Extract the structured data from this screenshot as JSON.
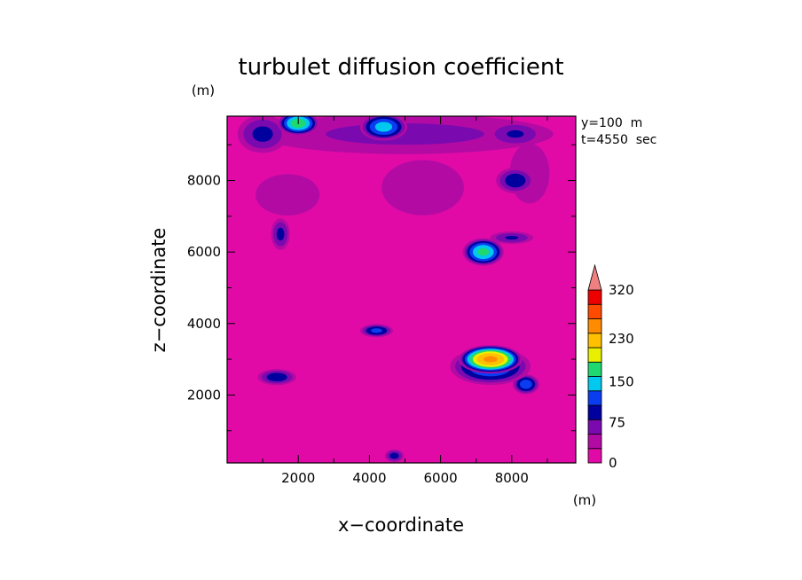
{
  "chart_data": {
    "type": "heatmap",
    "title": "turbulet diffusion coefficient",
    "xlabel": "x−coordinate",
    "ylabel": "z−coordinate",
    "x_unit": "(m)",
    "y_unit": "(m)",
    "annotations": [
      "y=100  m",
      "t=4550  sec"
    ],
    "xlim": [
      0,
      9800
    ],
    "ylim": [
      100,
      9800
    ],
    "x_ticks": [
      "2000",
      "4000",
      "6000",
      "8000"
    ],
    "y_ticks": [
      "2000",
      "4000",
      "6000",
      "8000"
    ],
    "colorbar": {
      "levels": [
        0,
        25,
        50,
        75,
        100,
        125,
        150,
        175,
        200,
        230,
        260,
        290,
        320
      ],
      "labels": [
        "0",
        "75",
        "150",
        "230",
        "320"
      ],
      "colors": [
        "#e20aa7",
        "#b40aa4",
        "#7a0ab0",
        "#00009e",
        "#0a3cf0",
        "#00c8ee",
        "#20d870",
        "#e8f000",
        "#ffc000",
        "#ff8c00",
        "#ff4a00",
        "#ee0000"
      ],
      "extend_color": "#f08080"
    },
    "features": [
      {
        "desc": "upper band",
        "x": 5000,
        "z": 9300,
        "rx": 5200,
        "rz": 700,
        "value": 60
      },
      {
        "desc": "blob",
        "x": 1700,
        "z": 7600,
        "rx": 1400,
        "rz": 900,
        "value": 40
      },
      {
        "desc": "blob",
        "x": 5500,
        "z": 7800,
        "rx": 1800,
        "rz": 1200,
        "value": 40
      },
      {
        "desc": "blob",
        "x": 8500,
        "z": 8200,
        "rx": 1000,
        "rz": 1500,
        "value": 35
      },
      {
        "desc": "blob",
        "x": 1000,
        "z": 9300,
        "rx": 800,
        "rz": 600,
        "value": 85
      },
      {
        "desc": "blob",
        "x": 2000,
        "z": 9600,
        "rx": 600,
        "rz": 350,
        "value": 170
      },
      {
        "desc": "blob",
        "x": 4400,
        "z": 9500,
        "rx": 700,
        "rz": 400,
        "value": 140
      },
      {
        "desc": "blob",
        "x": 8100,
        "z": 9300,
        "rx": 900,
        "rz": 400,
        "value": 80
      },
      {
        "desc": "blob",
        "x": 8100,
        "z": 8000,
        "rx": 600,
        "rz": 400,
        "value": 95
      },
      {
        "desc": "blob",
        "x": 7200,
        "z": 6000,
        "rx": 600,
        "rz": 400,
        "value": 160
      },
      {
        "desc": "blob",
        "x": 8000,
        "z": 6400,
        "rx": 700,
        "rz": 200,
        "value": 80
      },
      {
        "desc": "blob",
        "x": 7400,
        "z": 3000,
        "rx": 900,
        "rz": 400,
        "value": 240
      },
      {
        "desc": "blob",
        "x": 7400,
        "z": 2800,
        "rx": 1200,
        "rz": 550,
        "value": 130
      },
      {
        "desc": "blob",
        "x": 8400,
        "z": 2300,
        "rx": 400,
        "rz": 300,
        "value": 120
      },
      {
        "desc": "blob",
        "x": 4200,
        "z": 3800,
        "rx": 500,
        "rz": 200,
        "value": 110
      },
      {
        "desc": "blob",
        "x": 1400,
        "z": 2500,
        "rx": 600,
        "rz": 250,
        "value": 95
      },
      {
        "desc": "blob",
        "x": 1500,
        "z": 6500,
        "rx": 300,
        "rz": 500,
        "value": 85
      },
      {
        "desc": "blob",
        "x": 4700,
        "z": 300,
        "rx": 300,
        "rz": 200,
        "value": 90
      }
    ]
  }
}
